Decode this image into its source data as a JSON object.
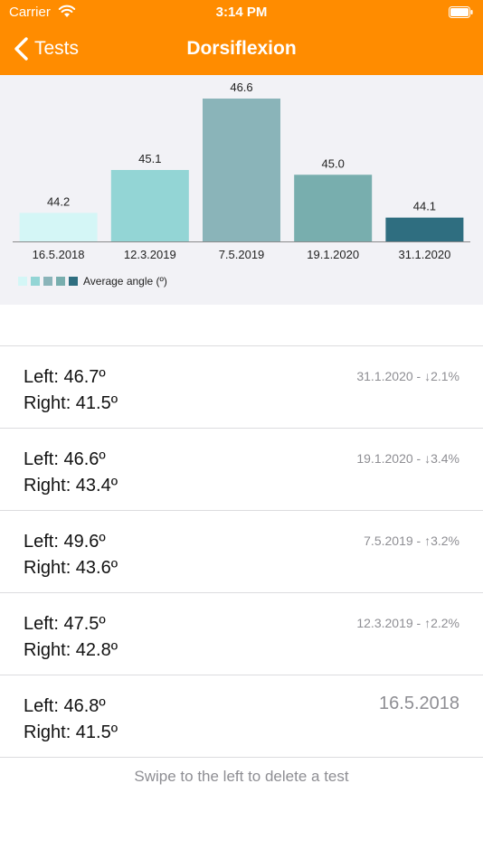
{
  "status_bar": {
    "carrier": "Carrier",
    "time": "3:14 PM"
  },
  "nav": {
    "back_label": "Tests",
    "title": "Dorsiflexion"
  },
  "colors": {
    "accent": "#FF8C00",
    "bars": [
      "#D4F6F6",
      "#93D5D5",
      "#8AB4B9",
      "#78AEAE",
      "#2F6E80"
    ],
    "chart_background": "#F2F2F6"
  },
  "chart_data": {
    "type": "bar",
    "categories": [
      "16.5.2018",
      "12.3.2019",
      "7.5.2019",
      "19.1.2020",
      "31.1.2020"
    ],
    "values": [
      44.2,
      45.1,
      46.6,
      45.0,
      44.1
    ],
    "value_labels": [
      "44.2",
      "45.1",
      "46.6",
      "45.0",
      "44.1"
    ],
    "legend": "Average angle (º)",
    "series": [
      {
        "name": "Average angle (º)",
        "values": [
          44.2,
          45.1,
          46.6,
          45.0,
          44.1
        ]
      }
    ],
    "ylim": [
      43.6,
      46.6
    ],
    "grid": false,
    "legend_position": "bottom-left"
  },
  "tests": [
    {
      "left": "Left: 46.7º",
      "right": "Right: 41.5º",
      "meta": "31.1.2020 - ↓2.1%",
      "big": false
    },
    {
      "left": "Left: 46.6º",
      "right": "Right: 43.4º",
      "meta": "19.1.2020 - ↓3.4%",
      "big": false
    },
    {
      "left": "Left: 49.6º",
      "right": "Right: 43.6º",
      "meta": "7.5.2019 - ↑3.2%",
      "big": false
    },
    {
      "left": "Left: 47.5º",
      "right": "Right: 42.8º",
      "meta": "12.3.2019 - ↑2.2%",
      "big": false
    },
    {
      "left": "Left: 46.8º",
      "right": "Right: 41.5º",
      "meta": "16.5.2018",
      "big": true
    }
  ],
  "footer": {
    "hint": "Swipe to the left to delete a test"
  },
  "icons": {
    "wifi": "wifi-icon",
    "battery": "battery-icon",
    "back": "chevron-left-icon"
  }
}
